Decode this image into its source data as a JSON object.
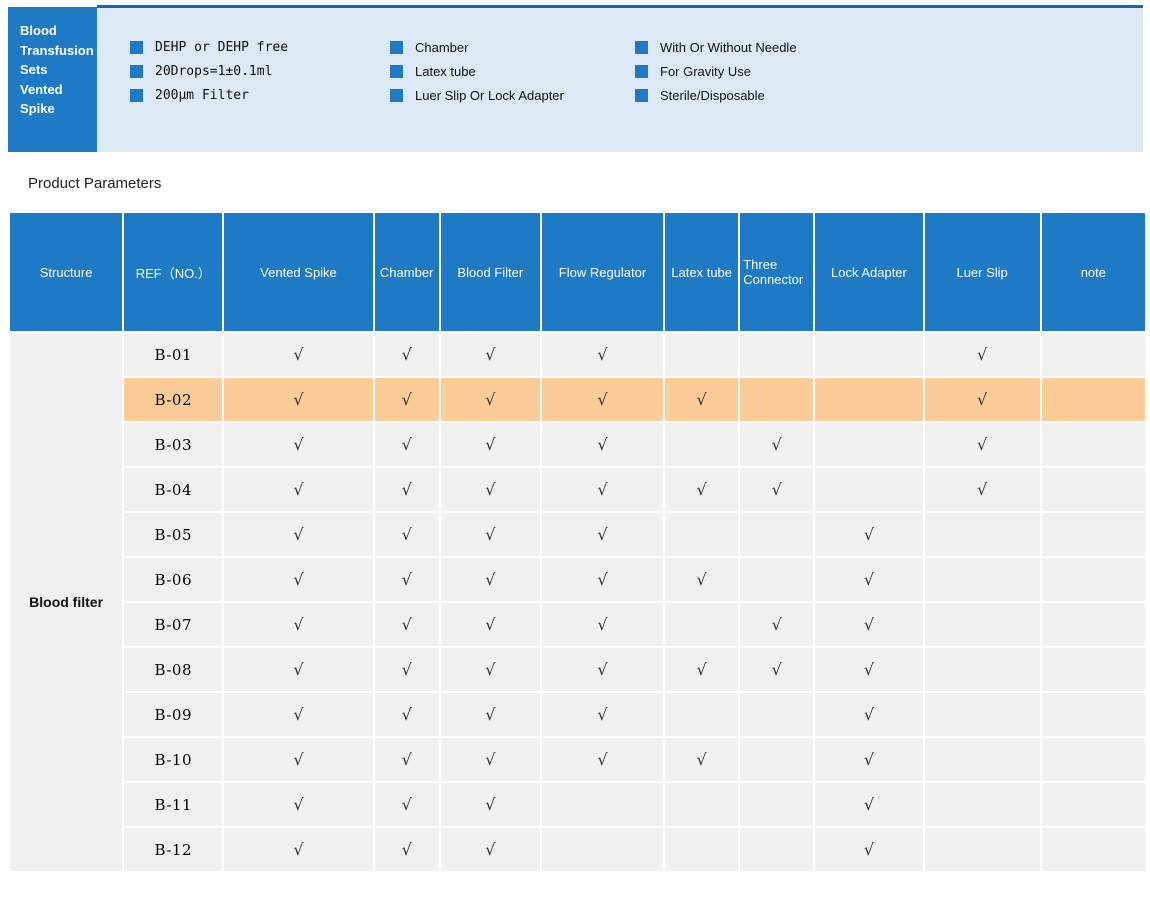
{
  "colors": {
    "primary_blue": "#1e7ac5",
    "dark_line_blue": "#1168b1",
    "banner_bg": "#dce9f4",
    "cell_bg": "#f0f0f0",
    "highlight_orange": "#fbcc98",
    "check_color": "#333333"
  },
  "header": {
    "title_lines": [
      "Blood",
      "Transfusion",
      "Sets",
      "Vented",
      "Spike"
    ],
    "features_col1": [
      "DEHP or DEHP free",
      "20Drops=1±0.1ml",
      "200μm Filter"
    ],
    "features_col2": [
      "Chamber",
      "Latex tube",
      "Luer Slip Or Lock Adapter"
    ],
    "features_col3": [
      "With Or Without Needle",
      "For Gravity Use",
      "Sterile/Disposable"
    ]
  },
  "section_title": "Product Parameters",
  "table": {
    "structure_label": "Blood filter",
    "check_glyph": "√",
    "columns": [
      "Structure",
      "REF（NO.）",
      "Vented Spike",
      "Chamber",
      "Blood Filter",
      "Flow Regulator",
      "Latex tube",
      "Three Connector",
      "Lock Adapter",
      "Luer Slip",
      "note"
    ],
    "rows": [
      {
        "ref": "B-01",
        "highlight": false,
        "checks": [
          1,
          1,
          1,
          1,
          0,
          0,
          0,
          1,
          0
        ]
      },
      {
        "ref": "B-02",
        "highlight": true,
        "checks": [
          1,
          1,
          1,
          1,
          1,
          0,
          0,
          1,
          0
        ]
      },
      {
        "ref": "B-03",
        "highlight": false,
        "checks": [
          1,
          1,
          1,
          1,
          0,
          1,
          0,
          1,
          0
        ]
      },
      {
        "ref": "B-04",
        "highlight": false,
        "checks": [
          1,
          1,
          1,
          1,
          1,
          1,
          0,
          1,
          0
        ]
      },
      {
        "ref": "B-05",
        "highlight": false,
        "checks": [
          1,
          1,
          1,
          1,
          0,
          0,
          1,
          0,
          0
        ]
      },
      {
        "ref": "B-06",
        "highlight": false,
        "checks": [
          1,
          1,
          1,
          1,
          1,
          0,
          1,
          0,
          0
        ]
      },
      {
        "ref": "B-07",
        "highlight": false,
        "checks": [
          1,
          1,
          1,
          1,
          0,
          1,
          1,
          0,
          0
        ]
      },
      {
        "ref": "B-08",
        "highlight": false,
        "checks": [
          1,
          1,
          1,
          1,
          1,
          1,
          1,
          0,
          0
        ]
      },
      {
        "ref": "B-09",
        "highlight": false,
        "checks": [
          1,
          1,
          1,
          1,
          0,
          0,
          1,
          0,
          0
        ]
      },
      {
        "ref": "B-10",
        "highlight": false,
        "checks": [
          1,
          1,
          1,
          1,
          1,
          0,
          1,
          0,
          0
        ]
      },
      {
        "ref": "B-11",
        "highlight": false,
        "checks": [
          1,
          1,
          1,
          0,
          0,
          0,
          1,
          0,
          0
        ]
      },
      {
        "ref": "B-12",
        "highlight": false,
        "checks": [
          1,
          1,
          1,
          0,
          0,
          0,
          1,
          0,
          0
        ]
      }
    ]
  }
}
